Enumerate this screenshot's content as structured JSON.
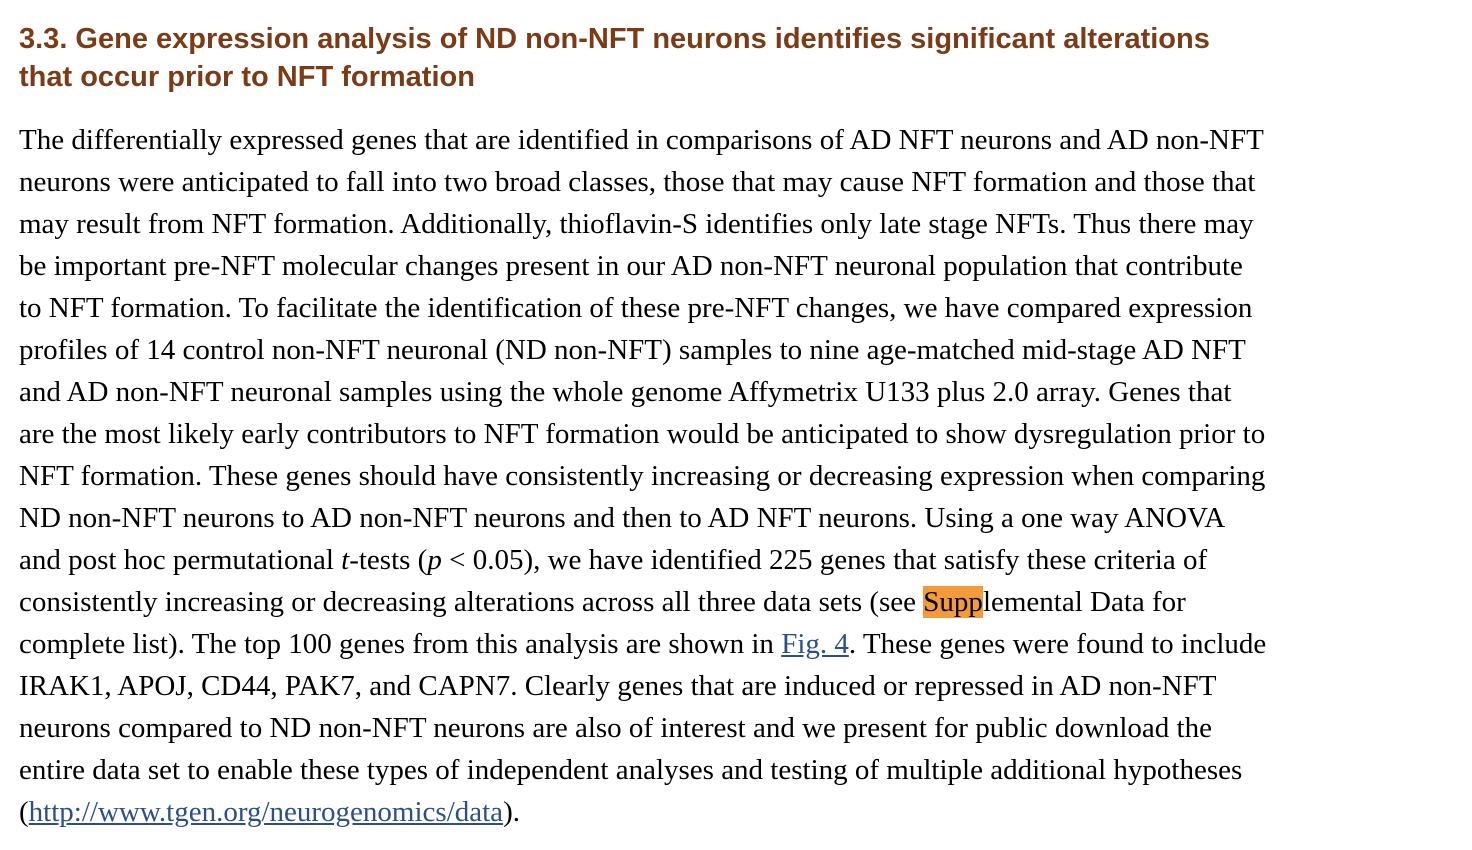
{
  "section": {
    "heading_lines": [
      "3.3. Gene expression analysis of ND non-NFT neurons identifies significant alterations",
      "that occur prior to NFT formation"
    ]
  },
  "paragraph": {
    "lines": [
      "The differentially expressed genes that are identified in comparisons of AD NFT neurons and AD non-NFT",
      "neurons were anticipated to fall into two broad classes, those that may cause NFT formation and those that",
      "may result from NFT formation. Additionally, thioflavin-S identifies only late stage NFTs. Thus there may",
      "be important pre-NFT molecular changes present in our AD non-NFT neuronal population that contribute",
      "to NFT formation. To facilitate the identification of these pre-NFT changes, we have compared expression",
      "profiles of 14 control non-NFT neuronal (ND non-NFT) samples to nine age-matched mid-stage AD NFT",
      "and AD non-NFT neuronal samples using the whole genome Affymetrix U133 plus 2.0 array. Genes that",
      "are the most likely early contributors to NFT formation would be anticipated to show dysregulation prior to",
      "NFT formation. These genes should have consistently increasing or decreasing expression when comparing",
      "ND non-NFT neurons to AD non-NFT neurons and then to AD NFT neurons. Using a one way ANOVA"
    ],
    "line11": {
      "a": "and post hoc permutational ",
      "t": "t",
      "b": "-tests (",
      "p": "p",
      "c": " < 0.05), we have identified 225 genes that satisfy these criteria of"
    },
    "line12": {
      "a": "consistently increasing or decreasing alterations across all three data sets (see ",
      "highlight": "Supp",
      "b": "lemental Data for"
    },
    "line13": {
      "a": "complete list). The top 100 genes from this analysis are shown in ",
      "fig_link": "Fig. 4",
      "b": ". These genes were found to include"
    },
    "lines_b": [
      "IRAK1, APOJ, CD44, PAK7, and CAPN7. Clearly genes that are induced or repressed in AD non-NFT",
      "neurons compared to ND non-NFT neurons are also of interest and we present for public download the",
      "entire data set to enable these types of independent analyses and testing of multiple additional hypotheses"
    ],
    "line17": {
      "open": "(",
      "url_link": "http://www.tgen.org/neurogenomics/data",
      "close": ")."
    }
  },
  "colors": {
    "heading": "#7b3b16",
    "link": "#2c4f8c",
    "highlight": "#f39a3a"
  }
}
